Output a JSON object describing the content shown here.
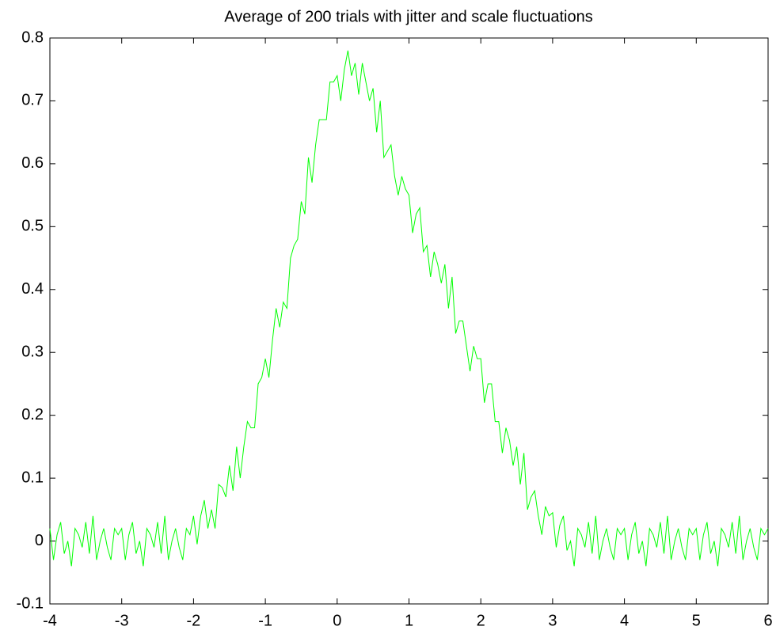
{
  "chart_data": {
    "type": "line",
    "title": "Average of 200 trials with jitter and scale fluctuations",
    "x": [
      -4,
      -3.95,
      -3.9,
      -3.85,
      -3.8,
      -3.75,
      -3.7,
      -3.65,
      -3.6,
      -3.55,
      -3.5,
      -3.45,
      -3.4,
      -3.35,
      -3.3,
      -3.25,
      -3.2,
      -3.15,
      -3.1,
      -3.05,
      -3,
      -2.95,
      -2.9,
      -2.85,
      -2.8,
      -2.75,
      -2.7,
      -2.65,
      -2.6,
      -2.55,
      -2.5,
      -2.45,
      -2.4,
      -2.35,
      -2.3,
      -2.25,
      -2.2,
      -2.15,
      -2.1,
      -2.05,
      -2,
      -1.95,
      -1.9,
      -1.85,
      -1.8,
      -1.75,
      -1.7,
      -1.65,
      -1.6,
      -1.55,
      -1.5,
      -1.45,
      -1.4,
      -1.35,
      -1.3,
      -1.25,
      -1.2,
      -1.15,
      -1.1,
      -1.05,
      -1,
      -0.95,
      -0.9,
      -0.85,
      -0.8,
      -0.75,
      -0.7,
      -0.65,
      -0.6,
      -0.55,
      -0.5,
      -0.45,
      -0.4,
      -0.35,
      -0.3,
      -0.25,
      -0.2,
      -0.15,
      -0.1,
      -0.05,
      0,
      0.05,
      0.1,
      0.15,
      0.2,
      0.25,
      0.3,
      0.35,
      0.4,
      0.45,
      0.5,
      0.55,
      0.6,
      0.65,
      0.7,
      0.75,
      0.8,
      0.85,
      0.9,
      0.95,
      1,
      1.05,
      1.1,
      1.15,
      1.2,
      1.25,
      1.3,
      1.35,
      1.4,
      1.45,
      1.5,
      1.55,
      1.6,
      1.65,
      1.7,
      1.75,
      1.8,
      1.85,
      1.9,
      1.95,
      2,
      2.05,
      2.1,
      2.15,
      2.2,
      2.25,
      2.3,
      2.35,
      2.4,
      2.45,
      2.5,
      2.55,
      2.6,
      2.65,
      2.7,
      2.75,
      2.8,
      2.85,
      2.9,
      2.95,
      3,
      3.05,
      3.1,
      3.15,
      3.2,
      3.25,
      3.3,
      3.35,
      3.4,
      3.45,
      3.5,
      3.55,
      3.6,
      3.65,
      3.7,
      3.75,
      3.8,
      3.85,
      3.9,
      3.95,
      4,
      4.05,
      4.1,
      4.15,
      4.2,
      4.25,
      4.3,
      4.35,
      4.4,
      4.45,
      4.5,
      4.55,
      4.6,
      4.65,
      4.7,
      4.75,
      4.8,
      4.85,
      4.9,
      4.95,
      5,
      5.05,
      5.1,
      5.15,
      5.2,
      5.25,
      5.3,
      5.35,
      5.4,
      5.45,
      5.5,
      5.55,
      5.6,
      5.65,
      5.7,
      5.75,
      5.8,
      5.85,
      5.9,
      5.95,
      6
    ],
    "series": [
      {
        "color": "#00ff00",
        "values": [
          0.02,
          -0.03,
          0.01,
          0.03,
          -0.02,
          0,
          -0.04,
          0.02,
          0.01,
          -0.01,
          0.03,
          -0.02,
          0.04,
          -0.03,
          0,
          0.02,
          -0.01,
          -0.03,
          0.02,
          0.01,
          0.02,
          -0.03,
          0.01,
          0.03,
          -0.02,
          0,
          -0.04,
          0.02,
          0.01,
          -0.01,
          0.03,
          -0.02,
          0.04,
          -0.03,
          0,
          0.02,
          -0.01,
          -0.03,
          0.02,
          0.01,
          0.04,
          -0.005,
          0.04,
          0.065,
          0.02,
          0.05,
          0.02,
          0.09,
          0.085,
          0.07,
          0.12,
          0.08,
          0.15,
          0.1,
          0.15,
          0.19,
          0.18,
          0.18,
          0.25,
          0.26,
          0.29,
          0.26,
          0.32,
          0.37,
          0.34,
          0.38,
          0.37,
          0.45,
          0.47,
          0.48,
          0.54,
          0.52,
          0.61,
          0.57,
          0.63,
          0.67,
          0.67,
          0.67,
          0.73,
          0.73,
          0.74,
          0.7,
          0.75,
          0.78,
          0.74,
          0.76,
          0.71,
          0.76,
          0.73,
          0.7,
          0.72,
          0.65,
          0.7,
          0.61,
          0.62,
          0.63,
          0.58,
          0.55,
          0.58,
          0.56,
          0.55,
          0.49,
          0.52,
          0.53,
          0.46,
          0.47,
          0.42,
          0.46,
          0.44,
          0.41,
          0.44,
          0.37,
          0.42,
          0.33,
          0.35,
          0.35,
          0.31,
          0.27,
          0.31,
          0.29,
          0.29,
          0.22,
          0.25,
          0.25,
          0.19,
          0.19,
          0.14,
          0.18,
          0.16,
          0.12,
          0.15,
          0.09,
          0.14,
          0.05,
          0.07,
          0.08,
          0.04,
          0.01,
          0.055,
          0.04,
          0.045,
          -0.01,
          0.025,
          0.04,
          -0.015,
          0,
          -0.04,
          0.02,
          0.01,
          -0.01,
          0.03,
          -0.02,
          0.04,
          -0.03,
          0,
          0.02,
          -0.01,
          -0.03,
          0.02,
          0.01,
          0.02,
          -0.03,
          0.01,
          0.03,
          -0.02,
          0,
          -0.04,
          0.02,
          0.01,
          -0.01,
          0.03,
          -0.02,
          0.04,
          -0.03,
          0,
          0.02,
          -0.01,
          -0.03,
          0.02,
          0.01,
          0.02,
          -0.03,
          0.01,
          0.03,
          -0.02,
          0,
          -0.04,
          0.02,
          0.01,
          -0.01,
          0.03,
          -0.02,
          0.04,
          -0.03,
          0,
          0.02,
          -0.01,
          -0.03,
          0.02,
          0.01,
          0.02
        ]
      }
    ],
    "xlim": [
      -4,
      6
    ],
    "xticks": [
      -4,
      -3,
      -2,
      -1,
      0,
      1,
      2,
      3,
      4,
      5,
      6
    ],
    "ylim": [
      -0.1,
      0.8
    ],
    "yticks": [
      -0.1,
      0,
      0.1,
      0.2,
      0.3,
      0.4,
      0.5,
      0.6,
      0.7,
      0.8
    ]
  }
}
